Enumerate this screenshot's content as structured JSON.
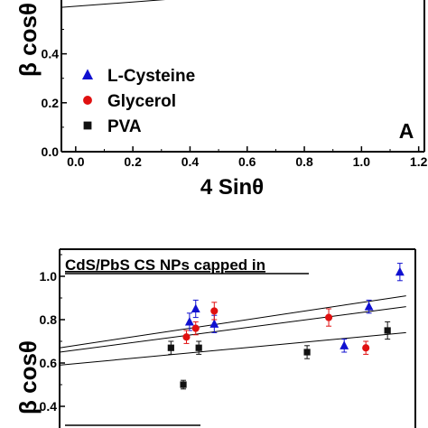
{
  "chart_data": [
    {
      "panel_label": "A",
      "type": "scatter",
      "xlabel": "4 Sinθ",
      "ylabel": "β cosθ",
      "xlim": [
        -0.05,
        1.22
      ],
      "ylim": [
        0.0,
        0.62
      ],
      "x_ticks": [
        0.0,
        0.2,
        0.4,
        0.6,
        0.8,
        1.0,
        1.2
      ],
      "x_tick_labels": [
        "0.0",
        "0.2",
        "0.4",
        "0.6",
        "0.8",
        "1.0",
        "1.2"
      ],
      "y_ticks": [
        0.0,
        0.2,
        0.4
      ],
      "y_tick_labels": [
        "0.0",
        "0.2",
        "0.4"
      ],
      "legend": {
        "placement": "bottom-left",
        "entries": [
          {
            "name": "L-Cysteine",
            "marker": "triangle",
            "color": "#1010d0"
          },
          {
            "name": "Glycerol",
            "marker": "circle",
            "color": "#e01010"
          },
          {
            "name": "PVA",
            "marker": "square",
            "color": "#111111"
          }
        ]
      },
      "fit_lines": [
        {
          "x": [
            -0.05,
            0.35
          ],
          "y": [
            0.59,
            0.625
          ]
        }
      ]
    },
    {
      "type": "scatter",
      "title": "CdS/PbS CS NPs capped in",
      "ylabel": "β cosθ",
      "ylim": [
        0.38,
        1.15
      ],
      "y_ticks": [
        0.4,
        0.6,
        0.8,
        1.0
      ],
      "y_tick_labels": [
        "0.4",
        "0.6",
        "0.8",
        "1.0"
      ],
      "series": [
        {
          "name": "L-Cysteine",
          "marker": "triangle",
          "color": "#1010d0",
          "points": [
            {
              "x": 0.42,
              "y": 0.79,
              "err": 0.04
            },
            {
              "x": 0.44,
              "y": 0.85,
              "err": 0.04
            },
            {
              "x": 0.5,
              "y": 0.78,
              "err": 0.04
            },
            {
              "x": 0.92,
              "y": 0.68,
              "err": 0.03
            },
            {
              "x": 1.0,
              "y": 0.86,
              "err": 0.03
            },
            {
              "x": 1.1,
              "y": 1.02,
              "err": 0.04
            }
          ],
          "fit": {
            "x": [
              0.0,
              1.12
            ],
            "y": [
              0.67,
              0.91
            ]
          }
        },
        {
          "name": "Glycerol",
          "marker": "circle",
          "color": "#e01010",
          "points": [
            {
              "x": 0.41,
              "y": 0.72,
              "err": 0.03
            },
            {
              "x": 0.44,
              "y": 0.76,
              "err": 0.03
            },
            {
              "x": 0.5,
              "y": 0.84,
              "err": 0.04
            },
            {
              "x": 0.87,
              "y": 0.81,
              "err": 0.04
            },
            {
              "x": 0.99,
              "y": 0.67,
              "err": 0.03
            }
          ],
          "fit": {
            "x": [
              0.0,
              1.12
            ],
            "y": [
              0.65,
              0.86
            ]
          }
        },
        {
          "name": "PVA",
          "marker": "square",
          "color": "#111111",
          "points": [
            {
              "x": 0.36,
              "y": 0.67,
              "err": 0.03
            },
            {
              "x": 0.4,
              "y": 0.5,
              "err": 0.02
            },
            {
              "x": 0.45,
              "y": 0.67,
              "err": 0.03
            },
            {
              "x": 0.8,
              "y": 0.65,
              "err": 0.03
            },
            {
              "x": 1.06,
              "y": 0.75,
              "err": 0.04
            }
          ],
          "fit": {
            "x": [
              0.0,
              1.12
            ],
            "y": [
              0.59,
              0.74
            ]
          }
        }
      ]
    }
  ]
}
